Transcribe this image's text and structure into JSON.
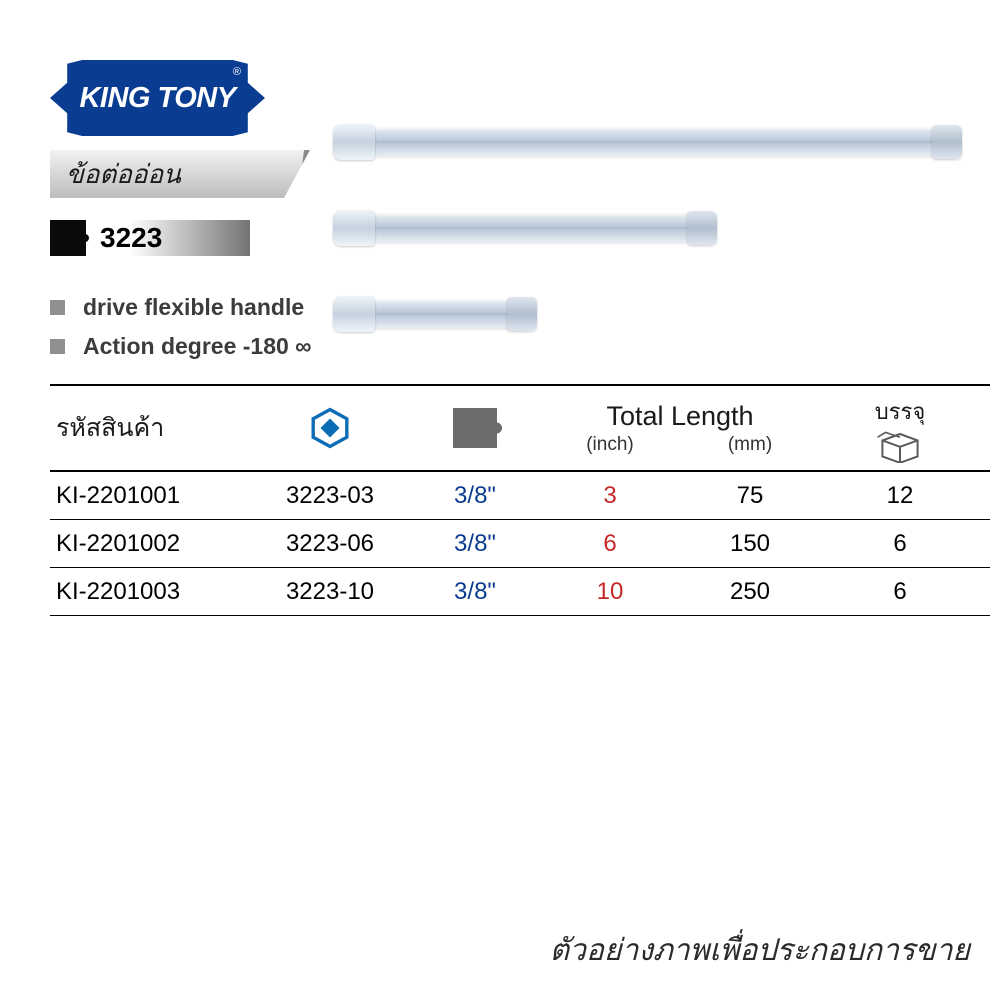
{
  "brand": {
    "name": "KING TONY",
    "registered": "®",
    "logo_bg": "#0a3d91",
    "logo_text_color": "#ffffff"
  },
  "category_label": "ข้อต่ออ่อน",
  "model_number": "3223",
  "features": [
    "drive flexible handle",
    "Action degree -180 ∞"
  ],
  "table": {
    "headers": {
      "code": "รหัสสินค้า",
      "total_length": "Total Length",
      "inch": "(inch)",
      "mm": "(mm)",
      "pack": "บรรจุ"
    },
    "rows": [
      {
        "code": "KI-2201001",
        "model": "3223-03",
        "size": "3/8\"",
        "inch": "3",
        "mm": "75",
        "pack": "12"
      },
      {
        "code": "KI-2201002",
        "model": "3223-06",
        "size": "3/8\"",
        "inch": "6",
        "mm": "150",
        "pack": "6"
      },
      {
        "code": "KI-2201003",
        "model": "3223-10",
        "size": "3/8\"",
        "inch": "10",
        "mm": "250",
        "pack": "6"
      }
    ]
  },
  "colors": {
    "brand_blue": "#0a3d91",
    "size_blue": "#0a3d91",
    "inch_red": "#c62828",
    "text_dark": "#1a1a1a",
    "bullet_gray": "#8f8f8f",
    "icon_gray": "#6c6c6c"
  },
  "watermark": "ตัวอย่างภาพเพื่อประกอบการขาย"
}
